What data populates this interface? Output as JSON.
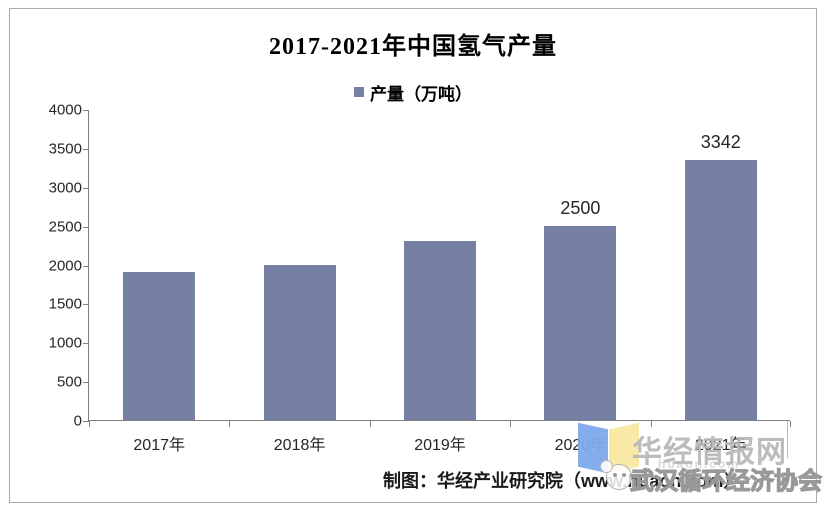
{
  "chart_data": {
    "type": "bar",
    "title": "2017-2021年中国氢气产量",
    "legend": {
      "label": "产量（万吨）",
      "position": "top-center",
      "marker_color": "#7580A4"
    },
    "categories": [
      "2017年",
      "2018年",
      "2019年",
      "2020年",
      "2021年"
    ],
    "values": [
      1900,
      2000,
      2300,
      2500,
      3342
    ],
    "value_labels": [
      "",
      "",
      "",
      "2500",
      "3342"
    ],
    "xlabel": "",
    "ylabel": "",
    "ylim": [
      0,
      4000
    ],
    "yticks": [
      0,
      500,
      1000,
      1500,
      2000,
      2500,
      3000,
      3500,
      4000
    ],
    "grid": false,
    "bar_color": "#7580A4",
    "axis_color": "#808080"
  },
  "footer": {
    "credit_text": "制图：华经产业研究院（www.huaon.com）"
  },
  "watermark": {
    "brand_name": "华经情报网",
    "brand_url": "huaon.com",
    "association_name": "武汉循环经济协会",
    "book_logo": {
      "left_color": "#7FA9EA",
      "right_color": "#F8E9A2"
    }
  }
}
